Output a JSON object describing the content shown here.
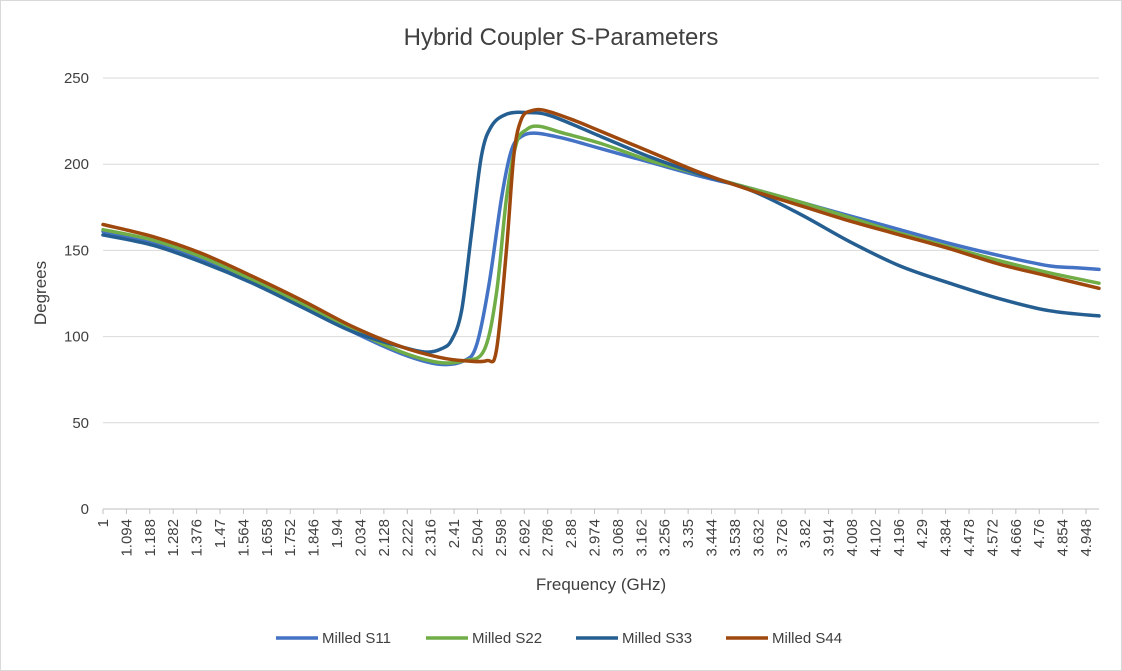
{
  "chart_data": {
    "type": "line",
    "title": "Hybrid Coupler S-Parameters",
    "xlabel": "Frequency (GHz)",
    "ylabel": "Degrees",
    "xlim": [
      1,
      5
    ],
    "ylim": [
      0,
      250
    ],
    "yticks": [
      0,
      50,
      100,
      150,
      200,
      250
    ],
    "xtick_labels": [
      "1",
      "1.094",
      "1.188",
      "1.282",
      "1.376",
      "1.47",
      "1.564",
      "1.658",
      "1.752",
      "1.846",
      "1.94",
      "2.034",
      "2.128",
      "2.222",
      "2.316",
      "2.41",
      "2.504",
      "2.598",
      "2.692",
      "2.786",
      "2.88",
      "2.974",
      "3.068",
      "3.162",
      "3.256",
      "3.35",
      "3.444",
      "3.538",
      "3.632",
      "3.726",
      "3.82",
      "3.914",
      "4.008",
      "4.102",
      "4.196",
      "4.29",
      "4.384",
      "4.478",
      "4.572",
      "4.666",
      "4.76",
      "4.854",
      "4.948"
    ],
    "grid": true,
    "legend": "bottom",
    "series": [
      {
        "name": "Milled S11",
        "color": "#4472C4",
        "points": [
          [
            1,
            161
          ],
          [
            1.2,
            155
          ],
          [
            1.4,
            145
          ],
          [
            1.6,
            132
          ],
          [
            1.8,
            118
          ],
          [
            2.0,
            103
          ],
          [
            2.2,
            90
          ],
          [
            2.35,
            84
          ],
          [
            2.45,
            86
          ],
          [
            2.5,
            95
          ],
          [
            2.55,
            130
          ],
          [
            2.6,
            180
          ],
          [
            2.64,
            208
          ],
          [
            2.68,
            216
          ],
          [
            2.74,
            218
          ],
          [
            2.85,
            215
          ],
          [
            3.0,
            209
          ],
          [
            3.2,
            201
          ],
          [
            3.4,
            193
          ],
          [
            3.6,
            186
          ],
          [
            3.8,
            178
          ],
          [
            4.0,
            170
          ],
          [
            4.2,
            162
          ],
          [
            4.4,
            154
          ],
          [
            4.6,
            147
          ],
          [
            4.8,
            141
          ],
          [
            4.9,
            140
          ],
          [
            5.0,
            139
          ]
        ]
      },
      {
        "name": "Milled S22",
        "color": "#70AD47",
        "points": [
          [
            1,
            162
          ],
          [
            1.2,
            156
          ],
          [
            1.4,
            146
          ],
          [
            1.6,
            133
          ],
          [
            1.8,
            119
          ],
          [
            2.0,
            104
          ],
          [
            2.2,
            91
          ],
          [
            2.35,
            85
          ],
          [
            2.45,
            86
          ],
          [
            2.53,
            92
          ],
          [
            2.58,
            125
          ],
          [
            2.62,
            180
          ],
          [
            2.66,
            212
          ],
          [
            2.7,
            220
          ],
          [
            2.75,
            222
          ],
          [
            2.85,
            218
          ],
          [
            3.0,
            212
          ],
          [
            3.2,
            202
          ],
          [
            3.4,
            194
          ],
          [
            3.6,
            186
          ],
          [
            3.8,
            178
          ],
          [
            4.0,
            169
          ],
          [
            4.2,
            160
          ],
          [
            4.4,
            152
          ],
          [
            4.6,
            144
          ],
          [
            4.8,
            137
          ],
          [
            5.0,
            131
          ]
        ]
      },
      {
        "name": "Milled S33",
        "color": "#255E91",
        "points": [
          [
            1,
            159
          ],
          [
            1.2,
            153
          ],
          [
            1.4,
            143
          ],
          [
            1.6,
            131
          ],
          [
            1.8,
            117
          ],
          [
            2.0,
            103
          ],
          [
            2.2,
            94
          ],
          [
            2.3,
            91
          ],
          [
            2.36,
            93
          ],
          [
            2.4,
            98
          ],
          [
            2.44,
            115
          ],
          [
            2.48,
            160
          ],
          [
            2.52,
            205
          ],
          [
            2.56,
            222
          ],
          [
            2.62,
            229
          ],
          [
            2.7,
            230
          ],
          [
            2.8,
            228
          ],
          [
            3.0,
            216
          ],
          [
            3.2,
            204
          ],
          [
            3.4,
            194
          ],
          [
            3.6,
            185
          ],
          [
            3.8,
            171
          ],
          [
            4.0,
            155
          ],
          [
            4.2,
            141
          ],
          [
            4.4,
            131
          ],
          [
            4.6,
            122
          ],
          [
            4.8,
            115
          ],
          [
            5.0,
            112
          ]
        ]
      },
      {
        "name": "Milled S44",
        "color": "#9E480E",
        "points": [
          [
            1,
            165
          ],
          [
            1.2,
            158
          ],
          [
            1.4,
            148
          ],
          [
            1.6,
            135
          ],
          [
            1.8,
            121
          ],
          [
            2.0,
            106
          ],
          [
            2.2,
            94
          ],
          [
            2.35,
            88
          ],
          [
            2.45,
            86
          ],
          [
            2.54,
            86
          ],
          [
            2.58,
            92
          ],
          [
            2.62,
            150
          ],
          [
            2.65,
            205
          ],
          [
            2.68,
            226
          ],
          [
            2.72,
            231
          ],
          [
            2.78,
            231
          ],
          [
            2.9,
            225
          ],
          [
            3.0,
            219
          ],
          [
            3.2,
            207
          ],
          [
            3.4,
            195
          ],
          [
            3.6,
            185
          ],
          [
            3.8,
            176
          ],
          [
            4.0,
            167
          ],
          [
            4.2,
            159
          ],
          [
            4.4,
            151
          ],
          [
            4.6,
            142
          ],
          [
            4.8,
            135
          ],
          [
            5.0,
            128
          ]
        ]
      }
    ]
  }
}
